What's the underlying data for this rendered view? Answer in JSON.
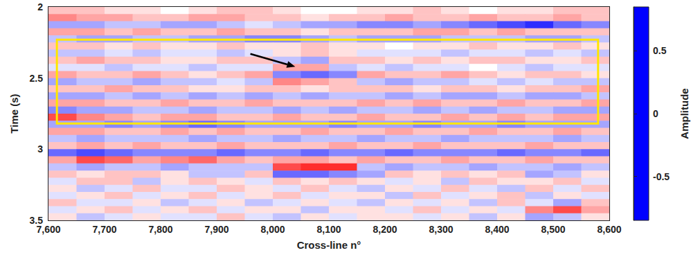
{
  "chart_data": {
    "type": "heatmap",
    "xlabel": "Cross-line n°",
    "ylabel": "Time (s)",
    "xlim": [
      7600,
      8600
    ],
    "xticks": [
      7600,
      7700,
      7800,
      7900,
      8000,
      8100,
      8200,
      8300,
      8400,
      8500,
      8600
    ],
    "ylim": [
      2,
      3.5
    ],
    "yticks": [
      2,
      2.5,
      3,
      3.5
    ],
    "cells": {
      "x": [
        7625,
        7675,
        7725,
        7775,
        7825,
        7875,
        7925,
        7975,
        8025,
        8075,
        8125,
        8175,
        8225,
        8275,
        8325,
        8375,
        8425,
        8475,
        8525,
        8575
      ],
      "y": [
        2.025,
        2.075,
        2.125,
        2.175,
        2.225,
        2.275,
        2.325,
        2.375,
        2.425,
        2.475,
        2.525,
        2.575,
        2.625,
        2.675,
        2.725,
        2.775,
        2.825,
        2.875,
        2.925,
        2.975,
        3.025,
        3.075,
        3.125,
        3.175,
        3.225,
        3.275,
        3.325,
        3.375,
        3.425,
        3.475
      ],
      "values": [
        [
          0.2,
          0.2,
          0.1,
          0.1,
          0.0,
          0.1,
          0.2,
          0.2,
          0.1,
          0.0,
          0.0,
          0.1,
          0.1,
          0.2,
          0.1,
          0.0,
          0.1,
          0.1,
          0.2,
          0.2
        ],
        [
          0.4,
          0.3,
          0.3,
          0.2,
          0.2,
          0.3,
          0.3,
          0.2,
          0.2,
          0.1,
          0.2,
          0.2,
          0.3,
          0.2,
          0.2,
          0.3,
          0.2,
          0.2,
          0.3,
          0.2
        ],
        [
          -0.3,
          -0.3,
          -0.2,
          -0.2,
          -0.3,
          -0.3,
          -0.2,
          -0.1,
          -0.2,
          -0.3,
          -0.3,
          -0.4,
          -0.4,
          -0.3,
          -0.4,
          -0.5,
          -0.6,
          -0.7,
          -0.5,
          -0.4
        ],
        [
          0.3,
          0.3,
          0.2,
          0.3,
          0.2,
          0.2,
          0.3,
          0.2,
          0.2,
          0.1,
          0.2,
          0.2,
          0.2,
          0.3,
          0.3,
          0.2,
          0.3,
          0.2,
          0.2,
          0.2
        ],
        [
          -0.2,
          -0.3,
          -0.3,
          -0.2,
          -0.2,
          -0.3,
          -0.3,
          -0.4,
          -0.4,
          -0.3,
          -0.2,
          -0.3,
          -0.3,
          -0.3,
          -0.2,
          -0.2,
          -0.2,
          -0.3,
          -0.3,
          -0.2
        ],
        [
          0.2,
          0.2,
          0.1,
          0.2,
          0.1,
          0.1,
          0.2,
          0.1,
          0.1,
          0.2,
          0.1,
          0.1,
          0.0,
          0.1,
          0.1,
          0.2,
          0.1,
          0.1,
          0.2,
          0.1
        ],
        [
          -0.2,
          -0.2,
          -0.1,
          -0.2,
          -0.1,
          -0.1,
          -0.2,
          -0.1,
          0.1,
          0.2,
          0.1,
          -0.1,
          -0.1,
          -0.1,
          -0.2,
          -0.1,
          -0.1,
          -0.2,
          -0.1,
          -0.2
        ],
        [
          0.2,
          0.3,
          0.2,
          0.2,
          0.1,
          0.1,
          0.2,
          0.2,
          -0.2,
          -0.3,
          0.2,
          0.2,
          0.1,
          0.2,
          0.1,
          0.2,
          0.2,
          0.1,
          0.1,
          0.2
        ],
        [
          -0.1,
          -0.1,
          -0.2,
          -0.1,
          -0.1,
          -0.2,
          -0.1,
          -0.1,
          0.3,
          0.3,
          -0.2,
          -0.1,
          -0.2,
          -0.1,
          -0.1,
          0.0,
          -0.1,
          -0.2,
          -0.1,
          -0.1
        ],
        [
          0.3,
          0.2,
          0.2,
          0.3,
          0.2,
          0.1,
          0.2,
          0.3,
          -0.4,
          -0.5,
          -0.4,
          0.3,
          0.2,
          0.2,
          0.3,
          0.2,
          0.1,
          0.2,
          0.2,
          0.1
        ],
        [
          -0.3,
          -0.2,
          -0.2,
          -0.3,
          -0.2,
          -0.2,
          -0.1,
          -0.2,
          0.4,
          0.3,
          0.2,
          -0.2,
          -0.3,
          -0.2,
          -0.2,
          -0.1,
          -0.2,
          -0.1,
          -0.2,
          -0.2
        ],
        [
          0.2,
          0.2,
          0.3,
          0.2,
          0.2,
          0.1,
          0.1,
          0.2,
          0.2,
          0.1,
          0.2,
          0.2,
          0.2,
          0.1,
          0.2,
          0.2,
          0.1,
          0.2,
          0.2,
          0.3
        ],
        [
          -0.3,
          -0.3,
          -0.2,
          -0.3,
          -0.2,
          -0.3,
          -0.2,
          -0.3,
          -0.2,
          -0.3,
          -0.2,
          -0.2,
          -0.3,
          -0.2,
          -0.3,
          -0.3,
          -0.2,
          -0.3,
          -0.3,
          -0.2
        ],
        [
          0.3,
          0.3,
          0.2,
          0.2,
          0.3,
          0.2,
          0.2,
          0.3,
          0.2,
          0.2,
          0.2,
          0.3,
          0.2,
          0.3,
          0.2,
          0.2,
          0.3,
          0.2,
          0.2,
          0.3
        ],
        [
          -0.4,
          -0.3,
          -0.3,
          -0.2,
          -0.2,
          -0.3,
          -0.2,
          -0.2,
          -0.3,
          -0.2,
          -0.3,
          -0.2,
          -0.2,
          -0.3,
          -0.2,
          -0.3,
          -0.2,
          -0.2,
          -0.3,
          -0.3
        ],
        [
          0.6,
          0.4,
          0.3,
          0.2,
          0.3,
          0.3,
          0.2,
          0.2,
          0.3,
          0.2,
          0.2,
          0.3,
          0.2,
          0.2,
          0.3,
          0.2,
          0.3,
          0.2,
          0.3,
          0.3
        ],
        [
          -0.3,
          -0.3,
          -0.4,
          -0.3,
          -0.4,
          -0.5,
          -0.4,
          -0.3,
          -0.3,
          -0.3,
          -0.4,
          -0.3,
          -0.3,
          -0.4,
          -0.3,
          -0.3,
          -0.4,
          -0.3,
          -0.3,
          -0.3
        ],
        [
          0.3,
          0.3,
          0.2,
          0.2,
          0.3,
          0.2,
          0.3,
          0.2,
          0.2,
          0.3,
          0.2,
          0.2,
          0.3,
          0.2,
          0.2,
          0.3,
          0.2,
          0.2,
          0.3,
          0.2
        ],
        [
          -0.2,
          -0.3,
          -0.2,
          -0.2,
          -0.2,
          -0.3,
          -0.2,
          -0.2,
          -0.3,
          -0.2,
          -0.2,
          -0.3,
          -0.2,
          -0.2,
          -0.3,
          -0.2,
          -0.2,
          -0.2,
          -0.3,
          -0.2
        ],
        [
          0.2,
          0.3,
          0.2,
          0.3,
          0.2,
          0.2,
          0.3,
          0.2,
          0.2,
          0.2,
          0.3,
          0.2,
          0.2,
          0.3,
          0.2,
          0.2,
          0.2,
          0.3,
          0.2,
          0.2
        ],
        [
          -0.5,
          -0.6,
          -0.5,
          -0.4,
          -0.4,
          -0.4,
          -0.5,
          -0.4,
          -0.4,
          -0.5,
          -0.4,
          -0.4,
          -0.5,
          -0.4,
          -0.4,
          -0.4,
          -0.5,
          -0.4,
          -0.4,
          -0.5
        ],
        [
          0.3,
          0.6,
          0.5,
          0.3,
          0.4,
          0.5,
          0.3,
          0.2,
          0.3,
          0.3,
          0.2,
          0.3,
          0.2,
          0.2,
          0.3,
          0.2,
          0.2,
          0.3,
          0.2,
          0.2
        ],
        [
          -0.2,
          -0.3,
          -0.2,
          -0.2,
          -0.3,
          -0.2,
          -0.2,
          -0.2,
          0.6,
          0.7,
          0.7,
          -0.2,
          -0.3,
          -0.2,
          -0.2,
          -0.3,
          -0.2,
          -0.2,
          -0.3,
          -0.2
        ],
        [
          0.2,
          0.1,
          0.2,
          0.2,
          0.1,
          -0.2,
          -0.2,
          0.2,
          -0.5,
          -0.5,
          -0.4,
          -0.3,
          0.2,
          0.1,
          0.2,
          0.1,
          0.2,
          -0.3,
          -0.2,
          0.1
        ],
        [
          -0.1,
          0.2,
          0.2,
          -0.2,
          0.1,
          0.2,
          0.1,
          -0.1,
          0.2,
          0.1,
          0.2,
          0.1,
          -0.1,
          0.1,
          -0.2,
          0.2,
          0.1,
          0.1,
          0.2,
          -0.1
        ],
        [
          0.1,
          -0.2,
          -0.1,
          0.2,
          -0.1,
          -0.1,
          0.2,
          0.1,
          -0.1,
          0.2,
          -0.1,
          -0.2,
          0.1,
          -0.1,
          0.2,
          -0.1,
          -0.2,
          0.2,
          -0.1,
          0.2
        ],
        [
          -0.1,
          0.1,
          0.2,
          -0.1,
          0.1,
          0.2,
          -0.1,
          0.1,
          0.2,
          -0.1,
          0.1,
          0.1,
          -0.2,
          0.2,
          -0.1,
          0.1,
          0.2,
          -0.2,
          0.1,
          -0.1
        ],
        [
          0.2,
          -0.1,
          -0.1,
          0.1,
          -0.2,
          -0.1,
          0.1,
          -0.2,
          -0.1,
          0.1,
          -0.1,
          -0.2,
          0.1,
          -0.1,
          0.1,
          -0.2,
          0.2,
          -0.1,
          -0.3,
          0.2
        ],
        [
          -0.1,
          0.1,
          0.2,
          -0.1,
          0.1,
          0.2,
          -0.1,
          0.1,
          0.1,
          -0.2,
          0.1,
          0.1,
          -0.1,
          0.2,
          -0.1,
          0.1,
          -0.1,
          0.4,
          0.6,
          0.3
        ],
        [
          0.1,
          -0.2,
          -0.1,
          0.1,
          -0.1,
          -0.1,
          0.2,
          -0.1,
          -0.2,
          0.1,
          -0.1,
          0.1,
          0.1,
          -0.1,
          0.1,
          -0.2,
          0.1,
          -0.3,
          -0.2,
          0.1
        ]
      ]
    },
    "colorbar": {
      "label": "Amplitude",
      "range": [
        -0.85,
        0.85
      ],
      "ticks": [
        -0.5,
        0,
        0.5
      ],
      "colors": [
        "#0000ff",
        "#ffffff",
        "#ff0000"
      ]
    },
    "highlight_box": {
      "x": [
        7615,
        8580
      ],
      "y": [
        2.23,
        2.82
      ],
      "color": "#ffe600"
    },
    "arrow": {
      "from": [
        7960,
        2.33
      ],
      "to": [
        8040,
        2.42
      ],
      "color": "#000000"
    }
  }
}
